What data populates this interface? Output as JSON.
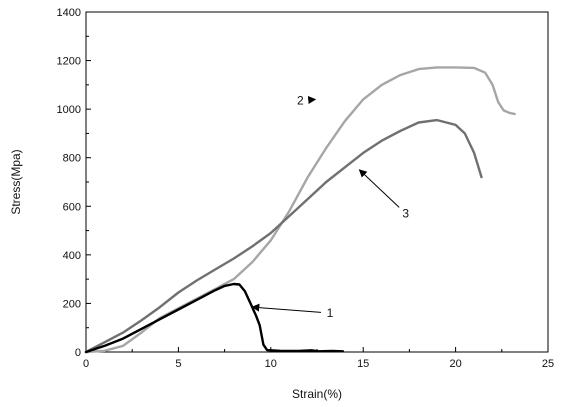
{
  "chart_data": {
    "type": "line",
    "xlabel": "Strain(%)",
    "ylabel": "Stress(Mpa)",
    "xlim": [
      0,
      25
    ],
    "ylim": [
      0,
      1400
    ],
    "xticks": [
      0,
      5,
      10,
      15,
      20,
      25
    ],
    "yticks": [
      0,
      200,
      400,
      600,
      800,
      1000,
      1200,
      1400
    ],
    "grid": false,
    "legend": "none",
    "series": [
      {
        "name": "1",
        "color": "#000000",
        "stroke_width": 2.4,
        "label_point": [
          13.2,
          160
        ],
        "arrow_target": [
          9.0,
          185
        ],
        "points": [
          [
            0,
            0
          ],
          [
            1,
            25
          ],
          [
            2,
            55
          ],
          [
            3,
            95
          ],
          [
            4,
            135
          ],
          [
            5,
            175
          ],
          [
            6,
            215
          ],
          [
            7,
            255
          ],
          [
            7.5,
            272
          ],
          [
            8,
            280
          ],
          [
            8.3,
            278
          ],
          [
            8.6,
            250
          ],
          [
            8.9,
            200
          ],
          [
            9.2,
            150
          ],
          [
            9.4,
            110
          ],
          [
            9.6,
            30
          ],
          [
            9.8,
            8
          ],
          [
            10.5,
            5
          ],
          [
            11.5,
            4
          ],
          [
            12.2,
            7
          ],
          [
            12.6,
            3
          ],
          [
            13.3,
            4
          ],
          [
            13.9,
            3
          ]
        ]
      },
      {
        "name": "2",
        "color": "#a6a6a6",
        "stroke_width": 2.4,
        "label_point": [
          11.6,
          1035
        ],
        "arrow_target": [
          12.4,
          1040
        ],
        "points": [
          [
            0,
            0
          ],
          [
            1,
            5
          ],
          [
            2,
            25
          ],
          [
            3,
            80
          ],
          [
            4,
            140
          ],
          [
            5,
            180
          ],
          [
            6,
            220
          ],
          [
            7,
            260
          ],
          [
            8,
            300
          ],
          [
            9,
            370
          ],
          [
            10,
            460
          ],
          [
            11,
            580
          ],
          [
            12,
            720
          ],
          [
            13,
            840
          ],
          [
            14,
            950
          ],
          [
            15,
            1040
          ],
          [
            16,
            1100
          ],
          [
            17,
            1140
          ],
          [
            18,
            1165
          ],
          [
            19,
            1172
          ],
          [
            20,
            1172
          ],
          [
            21,
            1170
          ],
          [
            21.6,
            1150
          ],
          [
            22.0,
            1100
          ],
          [
            22.3,
            1030
          ],
          [
            22.6,
            995
          ],
          [
            22.9,
            985
          ],
          [
            23.2,
            980
          ]
        ]
      },
      {
        "name": "3",
        "color": "#707070",
        "stroke_width": 2.4,
        "label_point": [
          17.3,
          570
        ],
        "arrow_target": [
          14.8,
          750
        ],
        "points": [
          [
            0,
            0
          ],
          [
            1,
            40
          ],
          [
            2,
            80
          ],
          [
            3,
            130
          ],
          [
            4,
            185
          ],
          [
            5,
            245
          ],
          [
            6,
            295
          ],
          [
            7,
            340
          ],
          [
            8,
            385
          ],
          [
            9,
            435
          ],
          [
            10,
            490
          ],
          [
            11,
            560
          ],
          [
            12,
            630
          ],
          [
            13,
            700
          ],
          [
            14,
            760
          ],
          [
            15,
            820
          ],
          [
            16,
            870
          ],
          [
            17,
            910
          ],
          [
            18,
            945
          ],
          [
            19,
            955
          ],
          [
            20,
            935
          ],
          [
            20.5,
            900
          ],
          [
            21,
            820
          ],
          [
            21.4,
            720
          ]
        ]
      }
    ]
  }
}
